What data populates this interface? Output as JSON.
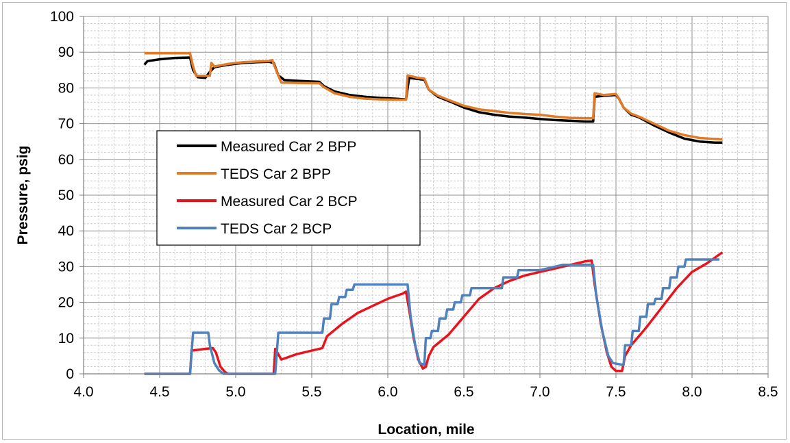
{
  "chart_data": {
    "type": "line",
    "title": "",
    "xlabel": "Location, mile",
    "ylabel": "Pressure, psig",
    "xlim": [
      4.0,
      8.5
    ],
    "ylim": [
      0,
      100
    ],
    "x_ticks": [
      "4.0",
      "4.5",
      "5.0",
      "5.5",
      "6.0",
      "6.5",
      "7.0",
      "7.5",
      "8.0",
      "8.5"
    ],
    "y_ticks": [
      "0",
      "10",
      "20",
      "30",
      "40",
      "50",
      "60",
      "70",
      "80",
      "90",
      "100"
    ],
    "grid": true,
    "legend_position": "center-left",
    "series": [
      {
        "name": "Measured Car 2 BPP",
        "color": "#000000",
        "points": [
          [
            4.4,
            86.5
          ],
          [
            4.42,
            87.5
          ],
          [
            4.5,
            88.0
          ],
          [
            4.6,
            88.4
          ],
          [
            4.7,
            88.5
          ],
          [
            4.72,
            85.0
          ],
          [
            4.75,
            83.0
          ],
          [
            4.8,
            82.8
          ],
          [
            4.83,
            84.5
          ],
          [
            4.86,
            85.8
          ],
          [
            4.95,
            86.5
          ],
          [
            5.05,
            87.0
          ],
          [
            5.15,
            87.2
          ],
          [
            5.22,
            87.3
          ],
          [
            5.25,
            87.0
          ],
          [
            5.28,
            83.5
          ],
          [
            5.32,
            82.2
          ],
          [
            5.4,
            82.0
          ],
          [
            5.55,
            81.7
          ],
          [
            5.58,
            80.5
          ],
          [
            5.65,
            79.0
          ],
          [
            5.75,
            78.0
          ],
          [
            5.85,
            77.5
          ],
          [
            5.95,
            77.2
          ],
          [
            6.05,
            77.0
          ],
          [
            6.12,
            76.8
          ],
          [
            6.14,
            82.8
          ],
          [
            6.2,
            82.5
          ],
          [
            6.24,
            82.3
          ],
          [
            6.27,
            79.5
          ],
          [
            6.33,
            77.5
          ],
          [
            6.42,
            76.0
          ],
          [
            6.5,
            74.5
          ],
          [
            6.6,
            73.2
          ],
          [
            6.7,
            72.5
          ],
          [
            6.8,
            72.0
          ],
          [
            6.9,
            71.7
          ],
          [
            7.0,
            71.3
          ],
          [
            7.1,
            71.0
          ],
          [
            7.2,
            70.8
          ],
          [
            7.3,
            70.6
          ],
          [
            7.35,
            70.6
          ],
          [
            7.36,
            77.5
          ],
          [
            7.42,
            77.8
          ],
          [
            7.5,
            78.0
          ],
          [
            7.52,
            77.0
          ],
          [
            7.55,
            74.5
          ],
          [
            7.6,
            72.5
          ],
          [
            7.65,
            71.8
          ],
          [
            7.75,
            69.5
          ],
          [
            7.85,
            67.5
          ],
          [
            7.95,
            65.8
          ],
          [
            8.05,
            65.0
          ],
          [
            8.15,
            64.7
          ],
          [
            8.2,
            64.7
          ]
        ]
      },
      {
        "name": "TEDS Car 2 BPP",
        "color": "#e07b27",
        "points": [
          [
            4.4,
            89.7
          ],
          [
            4.5,
            89.7
          ],
          [
            4.6,
            89.7
          ],
          [
            4.7,
            89.7
          ],
          [
            4.72,
            86.0
          ],
          [
            4.74,
            83.4
          ],
          [
            4.83,
            83.4
          ],
          [
            4.84,
            87.0
          ],
          [
            4.86,
            86.0
          ],
          [
            4.95,
            86.7
          ],
          [
            5.05,
            87.2
          ],
          [
            5.15,
            87.4
          ],
          [
            5.22,
            87.5
          ],
          [
            5.24,
            87.8
          ],
          [
            5.27,
            84.5
          ],
          [
            5.3,
            81.5
          ],
          [
            5.4,
            81.4
          ],
          [
            5.55,
            81.3
          ],
          [
            5.58,
            80.2
          ],
          [
            5.65,
            78.5
          ],
          [
            5.75,
            77.5
          ],
          [
            5.85,
            77.0
          ],
          [
            5.95,
            76.8
          ],
          [
            6.05,
            76.7
          ],
          [
            6.12,
            76.7
          ],
          [
            6.13,
            83.5
          ],
          [
            6.2,
            82.8
          ],
          [
            6.24,
            82.6
          ],
          [
            6.27,
            79.5
          ],
          [
            6.33,
            77.8
          ],
          [
            6.42,
            76.3
          ],
          [
            6.5,
            75.0
          ],
          [
            6.6,
            74.0
          ],
          [
            6.7,
            73.5
          ],
          [
            6.8,
            73.0
          ],
          [
            6.9,
            72.7
          ],
          [
            7.0,
            72.5
          ],
          [
            7.1,
            72.0
          ],
          [
            7.2,
            71.6
          ],
          [
            7.3,
            71.5
          ],
          [
            7.35,
            71.5
          ],
          [
            7.36,
            78.5
          ],
          [
            7.42,
            78.0
          ],
          [
            7.5,
            78.3
          ],
          [
            7.52,
            77.0
          ],
          [
            7.55,
            74.5
          ],
          [
            7.6,
            72.8
          ],
          [
            7.65,
            72.0
          ],
          [
            7.75,
            70.0
          ],
          [
            7.85,
            68.0
          ],
          [
            7.95,
            66.8
          ],
          [
            8.05,
            66.0
          ],
          [
            8.15,
            65.7
          ],
          [
            8.2,
            65.6
          ]
        ]
      },
      {
        "name": "Measured Car 2 BCP",
        "color": "#e8141c",
        "points": [
          [
            4.4,
            0
          ],
          [
            4.7,
            0
          ],
          [
            4.71,
            6.5
          ],
          [
            4.8,
            7.0
          ],
          [
            4.85,
            7.2
          ],
          [
            4.87,
            6.0
          ],
          [
            4.9,
            2.0
          ],
          [
            4.93,
            0.5
          ],
          [
            4.95,
            0
          ],
          [
            5.25,
            0
          ],
          [
            5.26,
            7.0
          ],
          [
            5.3,
            4.0
          ],
          [
            5.4,
            5.5
          ],
          [
            5.5,
            6.5
          ],
          [
            5.57,
            7.2
          ],
          [
            5.6,
            10.5
          ],
          [
            5.7,
            14.0
          ],
          [
            5.8,
            17.0
          ],
          [
            5.9,
            19.0
          ],
          [
            6.0,
            21.0
          ],
          [
            6.1,
            22.5
          ],
          [
            6.12,
            23.0
          ],
          [
            6.14,
            18.0
          ],
          [
            6.17,
            10.0
          ],
          [
            6.2,
            4.0
          ],
          [
            6.23,
            1.5
          ],
          [
            6.25,
            2.0
          ],
          [
            6.27,
            5.0
          ],
          [
            6.3,
            7.5
          ],
          [
            6.4,
            11.0
          ],
          [
            6.5,
            16.0
          ],
          [
            6.6,
            21.0
          ],
          [
            6.7,
            24.0
          ],
          [
            6.8,
            26.0
          ],
          [
            6.9,
            27.5
          ],
          [
            7.0,
            28.5
          ],
          [
            7.1,
            29.5
          ],
          [
            7.2,
            30.5
          ],
          [
            7.3,
            31.5
          ],
          [
            7.34,
            31.7
          ],
          [
            7.36,
            25.0
          ],
          [
            7.4,
            14.0
          ],
          [
            7.44,
            6.0
          ],
          [
            7.47,
            2.0
          ],
          [
            7.5,
            0.8
          ],
          [
            7.54,
            0.8
          ],
          [
            7.56,
            5.0
          ],
          [
            7.6,
            8.0
          ],
          [
            7.7,
            13.0
          ],
          [
            7.8,
            18.5
          ],
          [
            7.9,
            24.0
          ],
          [
            8.0,
            28.5
          ],
          [
            8.1,
            31.0
          ],
          [
            8.2,
            34.0
          ]
        ]
      },
      {
        "name": "TEDS Car 2 BCP",
        "color": "#4f81bd",
        "points": [
          [
            4.4,
            0
          ],
          [
            4.7,
            0
          ],
          [
            4.72,
            11.5
          ],
          [
            4.82,
            11.5
          ],
          [
            4.83,
            8.0
          ],
          [
            4.86,
            3.0
          ],
          [
            4.89,
            1.0
          ],
          [
            4.92,
            0
          ],
          [
            5.26,
            0
          ],
          [
            5.28,
            11.5
          ],
          [
            5.5,
            11.5
          ],
          [
            5.57,
            11.5
          ],
          [
            5.58,
            15.5
          ],
          [
            5.62,
            15.5
          ],
          [
            5.63,
            19.5
          ],
          [
            5.67,
            19.5
          ],
          [
            5.68,
            21.5
          ],
          [
            5.72,
            21.5
          ],
          [
            5.73,
            23.5
          ],
          [
            5.77,
            23.5
          ],
          [
            5.78,
            25.0
          ],
          [
            6.13,
            25.0
          ],
          [
            6.15,
            16.0
          ],
          [
            6.18,
            8.0
          ],
          [
            6.21,
            3.0
          ],
          [
            6.24,
            2.5
          ],
          [
            6.25,
            10.0
          ],
          [
            6.28,
            10.0
          ],
          [
            6.29,
            12.0
          ],
          [
            6.33,
            12.0
          ],
          [
            6.34,
            15.5
          ],
          [
            6.38,
            15.5
          ],
          [
            6.39,
            18.0
          ],
          [
            6.43,
            18.0
          ],
          [
            6.44,
            20.0
          ],
          [
            6.48,
            20.0
          ],
          [
            6.49,
            22.0
          ],
          [
            6.54,
            22.0
          ],
          [
            6.55,
            24.0
          ],
          [
            6.75,
            24.0
          ],
          [
            6.76,
            27.0
          ],
          [
            6.85,
            27.0
          ],
          [
            6.86,
            29.0
          ],
          [
            7.0,
            29.0
          ],
          [
            7.05,
            29.5
          ],
          [
            7.15,
            30.5
          ],
          [
            7.35,
            30.5
          ],
          [
            7.37,
            22.0
          ],
          [
            7.41,
            12.0
          ],
          [
            7.45,
            5.0
          ],
          [
            7.48,
            3.0
          ],
          [
            7.55,
            2.5
          ],
          [
            7.56,
            8.0
          ],
          [
            7.6,
            8.0
          ],
          [
            7.61,
            12.0
          ],
          [
            7.65,
            12.0
          ],
          [
            7.66,
            16.0
          ],
          [
            7.7,
            16.0
          ],
          [
            7.71,
            19.5
          ],
          [
            7.75,
            19.5
          ],
          [
            7.76,
            21.0
          ],
          [
            7.8,
            21.0
          ],
          [
            7.81,
            24.0
          ],
          [
            7.85,
            24.0
          ],
          [
            7.86,
            27.0
          ],
          [
            7.9,
            27.0
          ],
          [
            7.91,
            30.0
          ],
          [
            7.95,
            30.0
          ],
          [
            7.96,
            32.0
          ],
          [
            8.0,
            32.0
          ],
          [
            8.18,
            32.0
          ]
        ]
      }
    ]
  }
}
